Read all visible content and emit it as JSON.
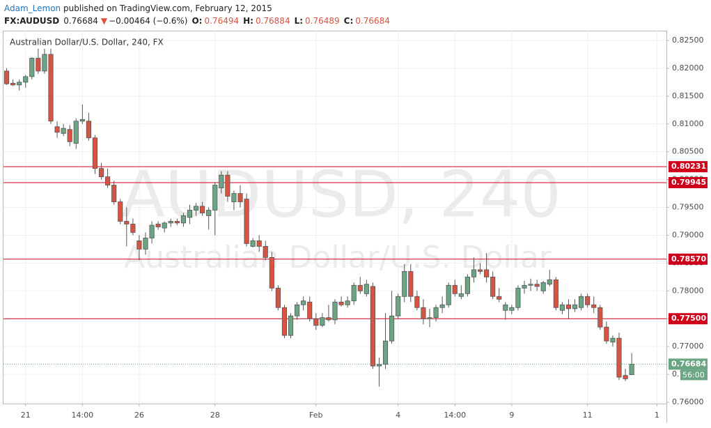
{
  "header": {
    "author": "Adam_Lemon",
    "published": " published on TradingView.com, February 12, 2015",
    "symbol": "FX:AUDUSD",
    "last": "0.76684",
    "arrow": "▼",
    "change": "−0.00464 (−0.6%)",
    "o_label": "O:",
    "o": "0.76494",
    "h_label": "H:",
    "h": "0.76884",
    "l_label": "L:",
    "l": "0.76489",
    "c_label": "C:",
    "c": "0.76684"
  },
  "chart_data": {
    "type": "candlestick",
    "title": "Australian Dollar/U.S. Dollar, 240, FX",
    "watermark": "AUDUSD, 240",
    "watermark_sub": "Australian Dollar/U.S. Dollar",
    "up_color": "#6ba583",
    "down_color": "#d75442",
    "grid": true,
    "categories": [
      null,
      null,
      null,
      "21",
      null,
      null,
      null,
      null,
      null,
      null,
      null,
      null,
      "14:00",
      null,
      null,
      null,
      null,
      null,
      null,
      null,
      null,
      "26",
      null,
      null,
      null,
      null,
      null,
      null,
      null,
      null,
      null,
      null,
      null,
      "28",
      null,
      null,
      null,
      null,
      null,
      null,
      null,
      null,
      null,
      null,
      null,
      null,
      null,
      null,
      null,
      "Feb",
      null,
      null,
      null,
      null,
      null,
      null,
      null,
      null,
      null,
      null,
      null,
      null,
      "4",
      null,
      null,
      null,
      null,
      null,
      null,
      null,
      null,
      "14:00",
      null,
      null,
      null,
      null,
      null,
      null,
      null,
      null,
      "9",
      null,
      null,
      null,
      null,
      null,
      null,
      null,
      null,
      null,
      null,
      null,
      "11",
      null,
      null,
      null,
      null,
      null,
      null,
      null,
      null,
      null,
      null,
      "1",
      null
    ],
    "open": [
      0.8195,
      0.8173,
      0.817,
      0.8175,
      0.8185,
      0.8218,
      0.8195,
      0.8225,
      0.8095,
      0.8083,
      0.809,
      0.8065,
      0.8105,
      0.8105,
      0.8075,
      0.802,
      0.8005,
      0.799,
      0.796,
      0.7925,
      0.792,
      0.789,
      0.7875,
      0.7895,
      0.792,
      0.7913,
      0.7922,
      0.7925,
      0.7922,
      0.7932,
      0.7945,
      0.7952,
      0.7935,
      0.7945,
      0.7985,
      0.8008,
      0.796,
      0.7975,
      0.7965,
      0.788,
      0.789,
      0.788,
      0.786,
      0.7805,
      0.777,
      0.772,
      0.7755,
      0.7775,
      0.778,
      0.775,
      0.7738,
      0.7752,
      0.7748,
      0.778,
      0.7775,
      0.7782,
      0.781,
      0.7795,
      0.7808,
      0.7665,
      0.7668,
      0.771,
      0.7755,
      0.779,
      0.7835,
      0.779,
      0.777,
      0.775,
      0.7752,
      0.777,
      0.7775,
      0.781,
      0.779,
      0.7795,
      0.7825,
      0.7838,
      0.7838,
      0.7825,
      0.779,
      0.7765,
      0.7765,
      0.777,
      0.7805,
      0.781,
      0.7812,
      0.78,
      0.7812,
      0.782,
      0.7765,
      0.7775,
      0.7768,
      0.777,
      0.779,
      0.7775,
      0.777,
      0.7735,
      0.7708,
      0.7715,
      0.7648,
      0.76494,
      null,
      null,
      null,
      null,
      null
    ],
    "high": [
      0.82,
      0.818,
      0.818,
      0.8188,
      0.822,
      0.8235,
      0.8235,
      0.8235,
      0.8105,
      0.81,
      0.8098,
      0.811,
      0.8135,
      0.812,
      0.808,
      0.803,
      0.802,
      0.7998,
      0.7965,
      0.795,
      0.793,
      0.79,
      0.7905,
      0.7925,
      0.7925,
      0.7925,
      0.793,
      0.793,
      0.794,
      0.7955,
      0.7958,
      0.796,
      0.795,
      0.7995,
      0.8015,
      0.8015,
      0.798,
      0.799,
      0.7975,
      0.7895,
      0.79,
      0.789,
      0.787,
      0.781,
      0.7775,
      0.776,
      0.778,
      0.779,
      0.779,
      0.776,
      0.776,
      0.7775,
      0.7785,
      0.779,
      0.779,
      0.7815,
      0.7825,
      0.782,
      0.7815,
      0.768,
      0.776,
      0.78,
      0.7795,
      0.7848,
      0.7848,
      0.78,
      0.7785,
      0.7768,
      0.7775,
      0.779,
      0.7815,
      0.782,
      0.781,
      0.783,
      0.786,
      0.785,
      0.7868,
      0.7835,
      0.7805,
      0.778,
      0.7775,
      0.781,
      0.7818,
      0.7822,
      0.782,
      0.7818,
      0.7838,
      0.7825,
      0.778,
      0.7785,
      0.7785,
      0.7795,
      0.7795,
      0.779,
      0.7775,
      0.7745,
      0.772,
      0.7725,
      0.766,
      0.76884,
      null,
      null,
      null,
      null,
      null
    ],
    "low": [
      0.817,
      0.8168,
      0.816,
      0.8165,
      0.818,
      0.819,
      0.819,
      0.81,
      0.8075,
      0.8078,
      0.806,
      0.8055,
      0.81,
      0.807,
      0.801,
      0.8,
      0.7985,
      0.7955,
      0.792,
      0.788,
      0.79,
      0.7855,
      0.7865,
      0.7885,
      0.791,
      0.7905,
      0.7915,
      0.7918,
      0.7915,
      0.792,
      0.7935,
      0.7935,
      0.791,
      0.79,
      0.7975,
      0.796,
      0.7945,
      0.795,
      0.788,
      0.7878,
      0.787,
      0.7855,
      0.78,
      0.7765,
      0.7715,
      0.7715,
      0.7748,
      0.7765,
      0.7745,
      0.773,
      0.7735,
      0.7745,
      0.774,
      0.7772,
      0.777,
      0.7775,
      0.7795,
      0.779,
      0.766,
      0.7628,
      0.766,
      0.7705,
      0.775,
      0.778,
      0.778,
      0.7765,
      0.774,
      0.7735,
      0.7745,
      0.776,
      0.777,
      0.779,
      0.7785,
      0.779,
      0.7815,
      0.783,
      0.7815,
      0.7785,
      0.778,
      0.7748,
      0.7758,
      0.7765,
      0.7795,
      0.78,
      0.78,
      0.7795,
      0.7808,
      0.7765,
      0.7758,
      0.775,
      0.7762,
      0.7765,
      0.777,
      0.776,
      0.773,
      0.7705,
      0.77,
      0.764,
      0.7638,
      0.76489,
      null,
      null,
      null,
      null,
      null
    ],
    "close": [
      0.8172,
      0.817,
      0.8175,
      0.8185,
      0.8218,
      0.8195,
      0.8225,
      0.8105,
      0.8085,
      0.8092,
      0.8068,
      0.8105,
      0.8108,
      0.8075,
      0.802,
      0.8005,
      0.799,
      0.796,
      0.7925,
      0.792,
      0.7905,
      0.7875,
      0.7895,
      0.7918,
      0.7915,
      0.7922,
      0.7925,
      0.7922,
      0.7935,
      0.7945,
      0.7952,
      0.794,
      0.7945,
      0.799,
      0.8008,
      0.797,
      0.7975,
      0.796,
      0.7885,
      0.789,
      0.788,
      0.786,
      0.7805,
      0.777,
      0.772,
      0.7755,
      0.7775,
      0.7782,
      0.775,
      0.7738,
      0.7752,
      0.7748,
      0.778,
      0.7775,
      0.7782,
      0.781,
      0.78,
      0.7812,
      0.7665,
      0.7668,
      0.771,
      0.7755,
      0.779,
      0.7835,
      0.779,
      0.777,
      0.775,
      0.7752,
      0.777,
      0.7775,
      0.781,
      0.7795,
      0.7795,
      0.7825,
      0.7838,
      0.7835,
      0.7825,
      0.779,
      0.7785,
      0.7775,
      0.777,
      0.7805,
      0.781,
      0.7812,
      0.7808,
      0.7815,
      0.782,
      0.777,
      0.7775,
      0.7768,
      0.7775,
      0.779,
      0.7775,
      0.777,
      0.7735,
      0.771,
      0.7715,
      0.7645,
      0.7642,
      0.76684,
      null,
      null,
      null,
      null,
      null
    ],
    "ylim": [
      0.75975,
      0.82675
    ],
    "yticks": [
      {
        "value": 0.76,
        "label": "0.76000"
      },
      {
        "value": 0.765,
        "label": "0.76500"
      },
      {
        "value": 0.77,
        "label": "0.77000"
      },
      {
        "value": 0.775,
        "label": "0.77500"
      },
      {
        "value": 0.78,
        "label": "0.78000"
      },
      {
        "value": 0.785,
        "label": "0.78500"
      },
      {
        "value": 0.79,
        "label": "0.79000"
      },
      {
        "value": 0.795,
        "label": "0.79500"
      },
      {
        "value": 0.8,
        "label": "0.80000"
      },
      {
        "value": 0.805,
        "label": "0.80500"
      },
      {
        "value": 0.81,
        "label": "0.81000"
      },
      {
        "value": 0.815,
        "label": "0.81500"
      },
      {
        "value": 0.82,
        "label": "0.82000"
      },
      {
        "value": 0.825,
        "label": "0.82500"
      }
    ],
    "levels": [
      {
        "value": 0.80231,
        "label": "0.80231"
      },
      {
        "value": 0.79945,
        "label": "0.79945"
      },
      {
        "value": 0.7857,
        "label": "0.78570"
      },
      {
        "value": 0.775,
        "label": "0.77500"
      }
    ],
    "level_color": "#d0021b",
    "last_price": {
      "value": 0.76684,
      "label": "0.76684"
    },
    "countdown": "56:00"
  }
}
